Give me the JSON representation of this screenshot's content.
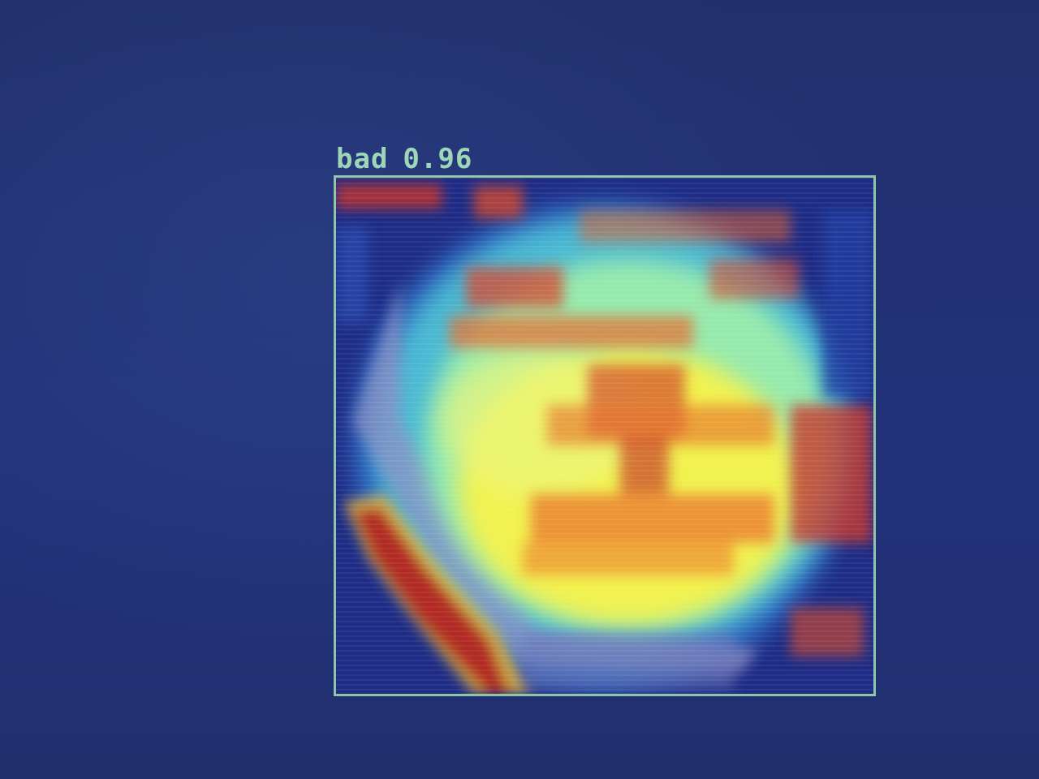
{
  "detection": {
    "label": "bad",
    "confidence": "0.96",
    "box_color": "#8fc6a8",
    "label_color": "#9ed6b8"
  },
  "background_color": "#22317a"
}
